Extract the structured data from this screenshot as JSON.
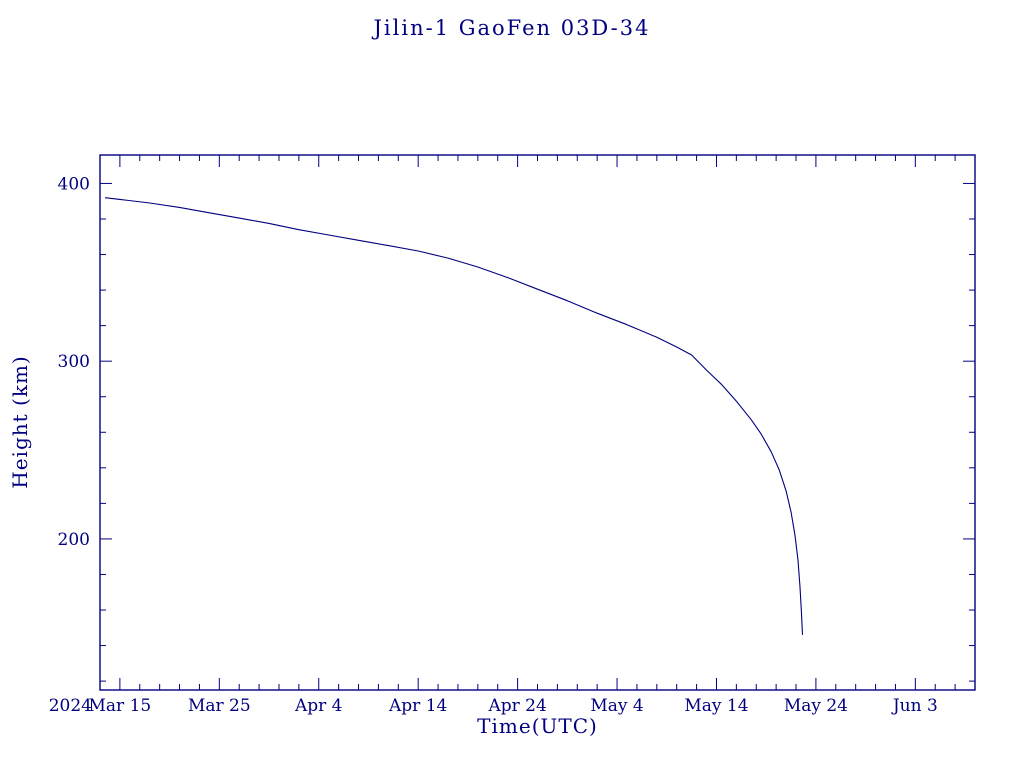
{
  "page": {
    "title": "Jilin-1 GaoFen 03D-34"
  },
  "colors": {
    "accent": "#000080",
    "background": "#ffffff"
  },
  "chart_data": {
    "type": "line",
    "title": "Jilin-1 GaoFen 03D-34",
    "xlabel": "Time(UTC)",
    "ylabel": "Height (km)",
    "x_era_label": "2024",
    "x_axis_note": "day values are days since 2024 Mar 10",
    "x_range_days": [
      3,
      91
    ],
    "x_ticks": [
      {
        "day": 5,
        "label": "Mar 15"
      },
      {
        "day": 15,
        "label": "Mar 25"
      },
      {
        "day": 25,
        "label": "Apr 4"
      },
      {
        "day": 35,
        "label": "Apr 14"
      },
      {
        "day": 45,
        "label": "Apr 24"
      },
      {
        "day": 55,
        "label": "May 4"
      },
      {
        "day": 65,
        "label": "May 14"
      },
      {
        "day": 75,
        "label": "May 24"
      },
      {
        "day": 85,
        "label": "Jun 3"
      }
    ],
    "x_minor_step_days": 2,
    "y_range": [
      115,
      416
    ],
    "y_ticks": [
      200,
      300,
      400
    ],
    "y_minor_step": 20,
    "grid": false,
    "legend": "none",
    "line_color": "#000080",
    "points": [
      [
        3.5,
        392
      ],
      [
        5,
        391
      ],
      [
        8,
        389
      ],
      [
        11,
        386.5
      ],
      [
        14,
        383.5
      ],
      [
        17,
        380.5
      ],
      [
        20,
        377.5
      ],
      [
        23,
        374
      ],
      [
        26,
        371
      ],
      [
        29,
        368
      ],
      [
        32,
        365
      ],
      [
        35,
        362
      ],
      [
        38,
        358
      ],
      [
        41,
        353
      ],
      [
        44,
        347
      ],
      [
        47,
        340.5
      ],
      [
        50,
        334
      ],
      [
        53,
        327
      ],
      [
        56,
        320.5
      ],
      [
        59,
        313.5
      ],
      [
        61,
        308
      ],
      [
        62.5,
        303.5
      ],
      [
        64,
        295
      ],
      [
        65.5,
        287
      ],
      [
        67,
        277.5
      ],
      [
        68.5,
        267
      ],
      [
        69.5,
        259
      ],
      [
        70.5,
        249
      ],
      [
        71.3,
        239
      ],
      [
        72,
        227
      ],
      [
        72.5,
        215
      ],
      [
        72.9,
        202
      ],
      [
        73.2,
        188
      ],
      [
        73.4,
        173
      ],
      [
        73.55,
        158
      ],
      [
        73.65,
        146
      ]
    ]
  }
}
